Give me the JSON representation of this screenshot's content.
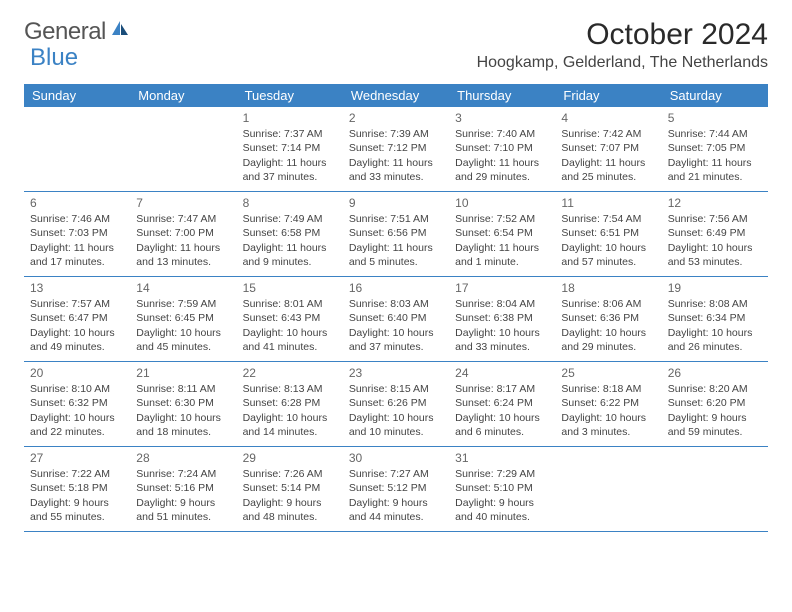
{
  "logo": {
    "text_a": "General",
    "text_b": "Blue"
  },
  "title": "October 2024",
  "location": "Hoogkamp, Gelderland, The Netherlands",
  "colors": {
    "header_bg": "#3b82c4",
    "header_text": "#ffffff",
    "border": "#3b82c4",
    "text": "#444444",
    "background": "#ffffff"
  },
  "weekdays": [
    "Sunday",
    "Monday",
    "Tuesday",
    "Wednesday",
    "Thursday",
    "Friday",
    "Saturday"
  ],
  "weeks": [
    [
      null,
      null,
      {
        "n": "1",
        "sunrise": "Sunrise: 7:37 AM",
        "sunset": "Sunset: 7:14 PM",
        "daylight": "Daylight: 11 hours and 37 minutes."
      },
      {
        "n": "2",
        "sunrise": "Sunrise: 7:39 AM",
        "sunset": "Sunset: 7:12 PM",
        "daylight": "Daylight: 11 hours and 33 minutes."
      },
      {
        "n": "3",
        "sunrise": "Sunrise: 7:40 AM",
        "sunset": "Sunset: 7:10 PM",
        "daylight": "Daylight: 11 hours and 29 minutes."
      },
      {
        "n": "4",
        "sunrise": "Sunrise: 7:42 AM",
        "sunset": "Sunset: 7:07 PM",
        "daylight": "Daylight: 11 hours and 25 minutes."
      },
      {
        "n": "5",
        "sunrise": "Sunrise: 7:44 AM",
        "sunset": "Sunset: 7:05 PM",
        "daylight": "Daylight: 11 hours and 21 minutes."
      }
    ],
    [
      {
        "n": "6",
        "sunrise": "Sunrise: 7:46 AM",
        "sunset": "Sunset: 7:03 PM",
        "daylight": "Daylight: 11 hours and 17 minutes."
      },
      {
        "n": "7",
        "sunrise": "Sunrise: 7:47 AM",
        "sunset": "Sunset: 7:00 PM",
        "daylight": "Daylight: 11 hours and 13 minutes."
      },
      {
        "n": "8",
        "sunrise": "Sunrise: 7:49 AM",
        "sunset": "Sunset: 6:58 PM",
        "daylight": "Daylight: 11 hours and 9 minutes."
      },
      {
        "n": "9",
        "sunrise": "Sunrise: 7:51 AM",
        "sunset": "Sunset: 6:56 PM",
        "daylight": "Daylight: 11 hours and 5 minutes."
      },
      {
        "n": "10",
        "sunrise": "Sunrise: 7:52 AM",
        "sunset": "Sunset: 6:54 PM",
        "daylight": "Daylight: 11 hours and 1 minute."
      },
      {
        "n": "11",
        "sunrise": "Sunrise: 7:54 AM",
        "sunset": "Sunset: 6:51 PM",
        "daylight": "Daylight: 10 hours and 57 minutes."
      },
      {
        "n": "12",
        "sunrise": "Sunrise: 7:56 AM",
        "sunset": "Sunset: 6:49 PM",
        "daylight": "Daylight: 10 hours and 53 minutes."
      }
    ],
    [
      {
        "n": "13",
        "sunrise": "Sunrise: 7:57 AM",
        "sunset": "Sunset: 6:47 PM",
        "daylight": "Daylight: 10 hours and 49 minutes."
      },
      {
        "n": "14",
        "sunrise": "Sunrise: 7:59 AM",
        "sunset": "Sunset: 6:45 PM",
        "daylight": "Daylight: 10 hours and 45 minutes."
      },
      {
        "n": "15",
        "sunrise": "Sunrise: 8:01 AM",
        "sunset": "Sunset: 6:43 PM",
        "daylight": "Daylight: 10 hours and 41 minutes."
      },
      {
        "n": "16",
        "sunrise": "Sunrise: 8:03 AM",
        "sunset": "Sunset: 6:40 PM",
        "daylight": "Daylight: 10 hours and 37 minutes."
      },
      {
        "n": "17",
        "sunrise": "Sunrise: 8:04 AM",
        "sunset": "Sunset: 6:38 PM",
        "daylight": "Daylight: 10 hours and 33 minutes."
      },
      {
        "n": "18",
        "sunrise": "Sunrise: 8:06 AM",
        "sunset": "Sunset: 6:36 PM",
        "daylight": "Daylight: 10 hours and 29 minutes."
      },
      {
        "n": "19",
        "sunrise": "Sunrise: 8:08 AM",
        "sunset": "Sunset: 6:34 PM",
        "daylight": "Daylight: 10 hours and 26 minutes."
      }
    ],
    [
      {
        "n": "20",
        "sunrise": "Sunrise: 8:10 AM",
        "sunset": "Sunset: 6:32 PM",
        "daylight": "Daylight: 10 hours and 22 minutes."
      },
      {
        "n": "21",
        "sunrise": "Sunrise: 8:11 AM",
        "sunset": "Sunset: 6:30 PM",
        "daylight": "Daylight: 10 hours and 18 minutes."
      },
      {
        "n": "22",
        "sunrise": "Sunrise: 8:13 AM",
        "sunset": "Sunset: 6:28 PM",
        "daylight": "Daylight: 10 hours and 14 minutes."
      },
      {
        "n": "23",
        "sunrise": "Sunrise: 8:15 AM",
        "sunset": "Sunset: 6:26 PM",
        "daylight": "Daylight: 10 hours and 10 minutes."
      },
      {
        "n": "24",
        "sunrise": "Sunrise: 8:17 AM",
        "sunset": "Sunset: 6:24 PM",
        "daylight": "Daylight: 10 hours and 6 minutes."
      },
      {
        "n": "25",
        "sunrise": "Sunrise: 8:18 AM",
        "sunset": "Sunset: 6:22 PM",
        "daylight": "Daylight: 10 hours and 3 minutes."
      },
      {
        "n": "26",
        "sunrise": "Sunrise: 8:20 AM",
        "sunset": "Sunset: 6:20 PM",
        "daylight": "Daylight: 9 hours and 59 minutes."
      }
    ],
    [
      {
        "n": "27",
        "sunrise": "Sunrise: 7:22 AM",
        "sunset": "Sunset: 5:18 PM",
        "daylight": "Daylight: 9 hours and 55 minutes."
      },
      {
        "n": "28",
        "sunrise": "Sunrise: 7:24 AM",
        "sunset": "Sunset: 5:16 PM",
        "daylight": "Daylight: 9 hours and 51 minutes."
      },
      {
        "n": "29",
        "sunrise": "Sunrise: 7:26 AM",
        "sunset": "Sunset: 5:14 PM",
        "daylight": "Daylight: 9 hours and 48 minutes."
      },
      {
        "n": "30",
        "sunrise": "Sunrise: 7:27 AM",
        "sunset": "Sunset: 5:12 PM",
        "daylight": "Daylight: 9 hours and 44 minutes."
      },
      {
        "n": "31",
        "sunrise": "Sunrise: 7:29 AM",
        "sunset": "Sunset: 5:10 PM",
        "daylight": "Daylight: 9 hours and 40 minutes."
      },
      null,
      null
    ]
  ]
}
